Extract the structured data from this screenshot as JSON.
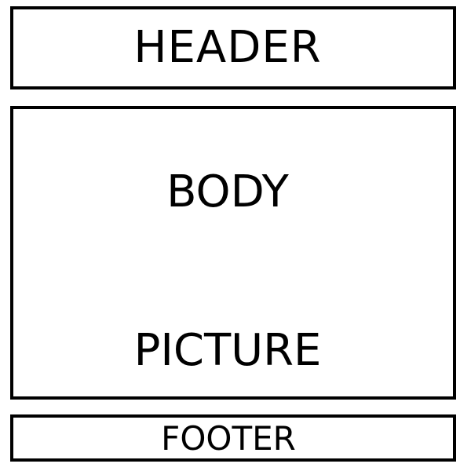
{
  "header": {
    "label": "HEADER"
  },
  "body": {
    "label": "BODY",
    "picture_label": "PICTURE"
  },
  "footer": {
    "label": "FOOTER"
  },
  "colors": {
    "border": "#000000",
    "background": "#ffffff",
    "text": "#000000"
  }
}
